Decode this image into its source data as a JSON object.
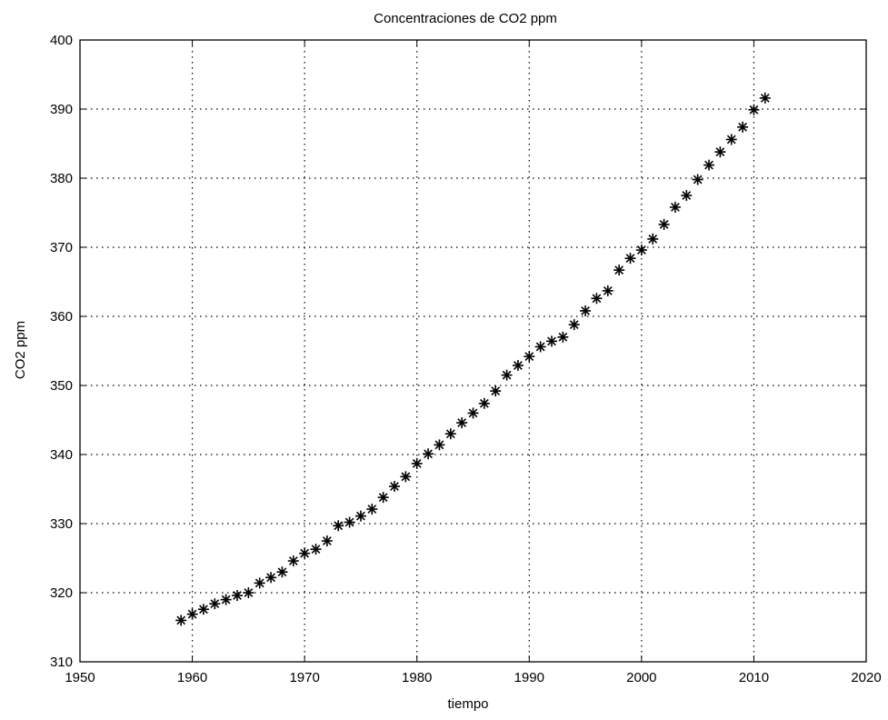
{
  "chart_data": {
    "type": "scatter",
    "title": "Concentraciones de CO2 ppm",
    "xlabel": "tiempo",
    "ylabel": "CO2 ppm",
    "xlim": [
      1950,
      2020
    ],
    "ylim": [
      310,
      400
    ],
    "xticks": [
      1950,
      1960,
      1970,
      1980,
      1990,
      2000,
      2010,
      2020
    ],
    "yticks": [
      310,
      320,
      330,
      340,
      350,
      360,
      370,
      380,
      390,
      400
    ],
    "grid": true,
    "marker": "*",
    "marker_color": "#000000",
    "x": [
      1959,
      1960,
      1961,
      1962,
      1963,
      1964,
      1965,
      1966,
      1967,
      1968,
      1969,
      1970,
      1971,
      1972,
      1973,
      1974,
      1975,
      1976,
      1977,
      1978,
      1979,
      1980,
      1981,
      1982,
      1983,
      1984,
      1985,
      1986,
      1987,
      1988,
      1989,
      1990,
      1991,
      1992,
      1993,
      1994,
      1995,
      1996,
      1997,
      1998,
      1999,
      2000,
      2001,
      2002,
      2003,
      2004,
      2005,
      2006,
      2007,
      2008,
      2009,
      2010,
      2011
    ],
    "y": [
      316.0,
      316.9,
      317.6,
      318.4,
      319.0,
      319.6,
      320.0,
      321.4,
      322.2,
      323.0,
      324.6,
      325.7,
      326.3,
      327.5,
      329.7,
      330.2,
      331.1,
      332.1,
      333.8,
      335.4,
      336.8,
      338.7,
      340.1,
      341.4,
      343.0,
      344.6,
      346.0,
      347.4,
      349.2,
      351.5,
      352.9,
      354.2,
      355.6,
      356.4,
      357.0,
      358.8,
      360.8,
      362.6,
      363.7,
      366.7,
      368.4,
      369.6,
      371.2,
      373.3,
      375.8,
      377.5,
      379.8,
      381.9,
      383.8,
      385.6,
      387.4,
      389.9,
      391.6
    ]
  }
}
